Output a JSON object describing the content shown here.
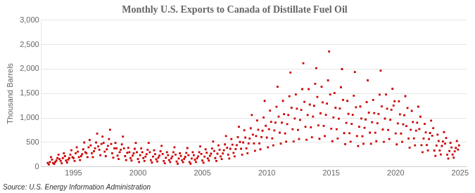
{
  "chart_data": {
    "type": "scatter",
    "title": "Monthly U.S. Exports to Canada of Distillate Fuel Oil",
    "y_label": "Thousand Barrels",
    "source": "Source: U.S. Energy Information Administration",
    "color": "#CC0000",
    "marker": "square",
    "grid": "y",
    "xlim": [
      1992.5,
      2025.5
    ],
    "xticks": [
      1995,
      2000,
      2005,
      2010,
      2015,
      2020,
      2025
    ],
    "ylim": [
      0,
      3000
    ],
    "yticks": [
      0,
      500,
      {
        "value": 1000,
        "label": "1,000"
      },
      {
        "value": 1500,
        "label": "1,500"
      },
      {
        "value": 2000,
        "label": "2,000"
      },
      {
        "value": 2500,
        "label": "2,500"
      },
      {
        "value": 3000,
        "label": "3,000"
      }
    ],
    "x": [
      1993.0,
      1993.083,
      1993.167,
      1993.25,
      1993.333,
      1993.417,
      1993.5,
      1993.583,
      1993.667,
      1993.75,
      1993.833,
      1993.917,
      1994.0,
      1994.083,
      1994.167,
      1994.25,
      1994.333,
      1994.417,
      1994.5,
      1994.583,
      1994.667,
      1994.75,
      1994.833,
      1994.917,
      1995.0,
      1995.083,
      1995.167,
      1995.25,
      1995.333,
      1995.417,
      1995.5,
      1995.583,
      1995.667,
      1995.75,
      1995.833,
      1995.917,
      1996.0,
      1996.083,
      1996.167,
      1996.25,
      1996.333,
      1996.417,
      1996.5,
      1996.583,
      1996.667,
      1996.75,
      1996.833,
      1996.917,
      1997.0,
      1997.083,
      1997.167,
      1997.25,
      1997.333,
      1997.417,
      1997.5,
      1997.583,
      1997.667,
      1997.75,
      1997.833,
      1997.917,
      1998.0,
      1998.083,
      1998.167,
      1998.25,
      1998.333,
      1998.417,
      1998.5,
      1998.583,
      1998.667,
      1998.75,
      1998.833,
      1998.917,
      1999.0,
      1999.083,
      1999.167,
      1999.25,
      1999.333,
      1999.417,
      1999.5,
      1999.583,
      1999.667,
      1999.75,
      1999.833,
      1999.917,
      2000.0,
      2000.083,
      2000.167,
      2000.25,
      2000.333,
      2000.417,
      2000.5,
      2000.583,
      2000.667,
      2000.75,
      2000.833,
      2000.917,
      2001.0,
      2001.083,
      2001.167,
      2001.25,
      2001.333,
      2001.417,
      2001.5,
      2001.583,
      2001.667,
      2001.75,
      2001.833,
      2001.917,
      2002.0,
      2002.083,
      2002.167,
      2002.25,
      2002.333,
      2002.417,
      2002.5,
      2002.583,
      2002.667,
      2002.75,
      2002.833,
      2002.917,
      2003.0,
      2003.083,
      2003.167,
      2003.25,
      2003.333,
      2003.417,
      2003.5,
      2003.583,
      2003.667,
      2003.75,
      2003.833,
      2003.917,
      2004.0,
      2004.083,
      2004.167,
      2004.25,
      2004.333,
      2004.417,
      2004.5,
      2004.583,
      2004.667,
      2004.75,
      2004.833,
      2004.917,
      2005.0,
      2005.083,
      2005.167,
      2005.25,
      2005.333,
      2005.417,
      2005.5,
      2005.583,
      2005.667,
      2005.75,
      2005.833,
      2005.917,
      2006.0,
      2006.083,
      2006.167,
      2006.25,
      2006.333,
      2006.417,
      2006.5,
      2006.583,
      2006.667,
      2006.75,
      2006.833,
      2006.917,
      2007.0,
      2007.083,
      2007.167,
      2007.25,
      2007.333,
      2007.417,
      2007.5,
      2007.583,
      2007.667,
      2007.75,
      2007.833,
      2007.917,
      2008.0,
      2008.083,
      2008.167,
      2008.25,
      2008.333,
      2008.417,
      2008.5,
      2008.583,
      2008.667,
      2008.75,
      2008.833,
      2008.917,
      2009.0,
      2009.083,
      2009.167,
      2009.25,
      2009.333,
      2009.417,
      2009.5,
      2009.583,
      2009.667,
      2009.75,
      2009.833,
      2009.917,
      2010.0,
      2010.083,
      2010.167,
      2010.25,
      2010.333,
      2010.417,
      2010.5,
      2010.583,
      2010.667,
      2010.75,
      2010.833,
      2010.917,
      2011.0,
      2011.083,
      2011.167,
      2011.25,
      2011.333,
      2011.417,
      2011.5,
      2011.583,
      2011.667,
      2011.75,
      2011.833,
      2011.917,
      2012.0,
      2012.083,
      2012.167,
      2012.25,
      2012.333,
      2012.417,
      2012.5,
      2012.583,
      2012.667,
      2012.75,
      2012.833,
      2012.917,
      2013.0,
      2013.083,
      2013.167,
      2013.25,
      2013.333,
      2013.417,
      2013.5,
      2013.583,
      2013.667,
      2013.75,
      2013.833,
      2013.917,
      2014.0,
      2014.083,
      2014.167,
      2014.25,
      2014.333,
      2014.417,
      2014.5,
      2014.583,
      2014.667,
      2014.75,
      2014.833,
      2014.917,
      2015.0,
      2015.083,
      2015.167,
      2015.25,
      2015.333,
      2015.417,
      2015.5,
      2015.583,
      2015.667,
      2015.75,
      2015.833,
      2015.917,
      2016.0,
      2016.083,
      2016.167,
      2016.25,
      2016.333,
      2016.417,
      2016.5,
      2016.583,
      2016.667,
      2016.75,
      2016.833,
      2016.917,
      2017.0,
      2017.083,
      2017.167,
      2017.25,
      2017.333,
      2017.417,
      2017.5,
      2017.583,
      2017.667,
      2017.75,
      2017.833,
      2017.917,
      2018.0,
      2018.083,
      2018.167,
      2018.25,
      2018.333,
      2018.417,
      2018.5,
      2018.583,
      2018.667,
      2018.75,
      2018.833,
      2018.917,
      2019.0,
      2019.083,
      2019.167,
      2019.25,
      2019.333,
      2019.417,
      2019.5,
      2019.583,
      2019.667,
      2019.75,
      2019.833,
      2019.917,
      2020.0,
      2020.083,
      2020.167,
      2020.25,
      2020.333,
      2020.417,
      2020.5,
      2020.583,
      2020.667,
      2020.75,
      2020.833,
      2020.917,
      2021.0,
      2021.083,
      2021.167,
      2021.25,
      2021.333,
      2021.417,
      2021.5,
      2021.583,
      2021.667,
      2021.75,
      2021.833,
      2021.917,
      2022.0,
      2022.083,
      2022.167,
      2022.25,
      2022.333,
      2022.417,
      2022.5,
      2022.583,
      2022.667,
      2022.75,
      2022.833,
      2022.917,
      2023.0,
      2023.083,
      2023.167,
      2023.25,
      2023.333,
      2023.417,
      2023.5,
      2023.583,
      2023.667,
      2023.75,
      2023.833,
      2023.917,
      2024.0,
      2024.083,
      2024.167,
      2024.25,
      2024.333,
      2024.417,
      2024.5,
      2024.583,
      2024.667,
      2024.75,
      2024.833,
      2024.917
    ],
    "values": [
      80,
      50,
      100,
      200,
      150,
      80,
      60,
      100,
      130,
      180,
      250,
      160,
      120,
      75,
      180,
      280,
      220,
      130,
      90,
      150,
      180,
      250,
      340,
      200,
      180,
      120,
      280,
      400,
      310,
      200,
      140,
      220,
      260,
      360,
      500,
      300,
      280,
      200,
      400,
      550,
      440,
      280,
      200,
      320,
      380,
      500,
      680,
      420,
      350,
      240,
      470,
      620,
      490,
      310,
      220,
      360,
      430,
      570,
      760,
      470,
      280,
      190,
      380,
      490,
      380,
      230,
      160,
      300,
      350,
      460,
      620,
      380,
      220,
      140,
      290,
      390,
      300,
      180,
      130,
      230,
      280,
      370,
      490,
      300,
      160,
      100,
      240,
      380,
      300,
      180,
      120,
      210,
      260,
      350,
      490,
      300,
      140,
      90,
      210,
      340,
      260,
      155,
      110,
      190,
      230,
      320,
      430,
      265,
      120,
      75,
      185,
      300,
      240,
      140,
      100,
      175,
      215,
      300,
      400,
      250,
      110,
      65,
      170,
      280,
      225,
      135,
      95,
      165,
      205,
      285,
      385,
      240,
      100,
      65,
      170,
      300,
      240,
      145,
      100,
      175,
      215,
      300,
      420,
      265,
      130,
      85,
      210,
      360,
      290,
      175,
      130,
      225,
      270,
      375,
      520,
      325,
      180,
      120,
      270,
      440,
      350,
      215,
      160,
      275,
      340,
      460,
      630,
      390,
      250,
      170,
      370,
      570,
      455,
      285,
      215,
      365,
      445,
      610,
      820,
      510,
      370,
      250,
      500,
      750,
      600,
      380,
      280,
      480,
      580,
      790,
      1060,
      660,
      480,
      330,
      630,
      950,
      760,
      480,
      360,
      610,
      740,
      1010,
      1350,
      840,
      600,
      400,
      770,
      1150,
      920,
      585,
      440,
      745,
      905,
      1230,
      1640,
      1030,
      700,
      475,
      905,
      1350,
      1080,
      685,
      515,
      875,
      1060,
      1445,
      1930,
      1210,
      770,
      520,
      990,
      1480,
      1190,
      755,
      570,
      960,
      1165,
      1590,
      2120,
      1330,
      820,
      555,
      1060,
      1590,
      1275,
      810,
      605,
      1030,
      1250,
      1700,
      2020,
      1430,
      850,
      575,
      1095,
      1640,
      1320,
      838,
      630,
      1065,
      1295,
      1770,
      2360,
      1480,
      780,
      525,
      1010,
      1510,
      1210,
      770,
      580,
      985,
      1195,
      1630,
      2000,
      1370,
      690,
      465,
      900,
      1350,
      1085,
      688,
      515,
      878,
      1065,
      1455,
      1940,
      1220,
      630,
      425,
      820,
      1235,
      990,
      627,
      473,
      798,
      970,
      1325,
      1770,
      1110,
      700,
      473,
      915,
      1370,
      1100,
      698,
      525,
      893,
      1082,
      1477,
      1970,
      1238,
      765,
      513,
      988,
      1482,
      1190,
      755,
      570,
      965,
      1168,
      1598,
      1255,
      1343,
      685,
      460,
      890,
      1340,
      1075,
      682,
      513,
      872,
      1057,
      1447,
      835,
      1205,
      580,
      393,
      760,
      1145,
      918,
      583,
      440,
      742,
      903,
      1232,
      775,
      1027,
      445,
      300,
      580,
      878,
      705,
      447,
      337,
      570,
      693,
      946,
      637,
      791,
      334,
      225,
      436,
      659,
      530,
      336,
      253,
      428,
      520,
      711,
      476,
      592,
      250,
      170,
      326,
      492,
      397,
      252,
      189,
      319,
      388,
      530,
      355,
      440
    ]
  }
}
